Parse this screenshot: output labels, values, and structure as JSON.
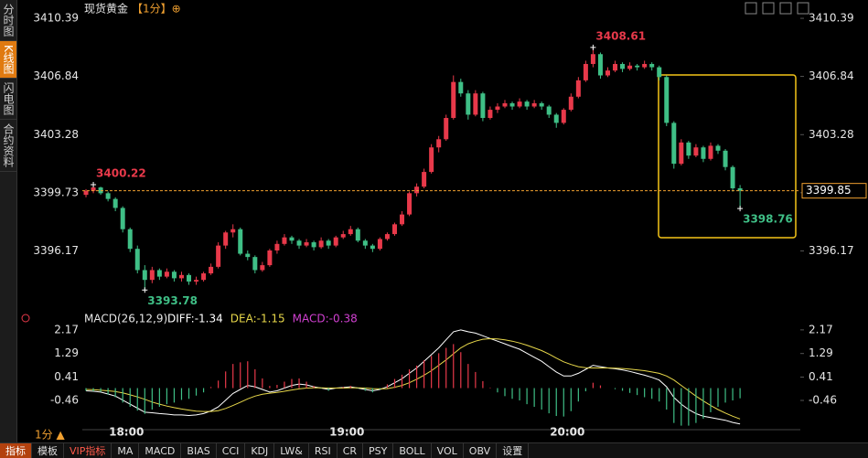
{
  "sidebar": {
    "tabs": [
      "分时图",
      "K线图",
      "闪电图",
      "合约资料"
    ]
  },
  "toolbar": {
    "items": [
      "指标",
      "模板",
      "VIP指标",
      "MA",
      "MACD",
      "BIAS",
      "CCI",
      "KDJ",
      "LW&",
      "RSI",
      "CR",
      "PSY",
      "BOLL",
      "VOL",
      "OBV",
      "设置"
    ]
  },
  "period_label": "1分 ▲",
  "chart_data": [
    {
      "type": "candlestick",
      "title": "现货黄金",
      "subtitle": "【1分】⊕",
      "up_color": "#e8394a",
      "down_color": "#3fbf86",
      "ylim": [
        3392.79,
        3410.84
      ],
      "yticks": [
        3396.17,
        3399.73,
        3403.28,
        3406.84,
        3410.39
      ],
      "xlim": [
        -0.5,
        97.2
      ],
      "last_price": 3399.85,
      "last_color": "#f0a030",
      "extremes": [
        3400.22,
        3393.78,
        3408.61,
        3398.76
      ],
      "ohlc": [
        [
          3399.6,
          3399.95,
          3399.45,
          3399.85
        ],
        [
          3399.85,
          3400.22,
          3399.7,
          3400.05
        ],
        [
          3400.05,
          3400.1,
          3399.6,
          3399.7
        ],
        [
          3399.7,
          3399.8,
          3399.2,
          3399.35
        ],
        [
          3399.35,
          3399.45,
          3398.6,
          3398.8
        ],
        [
          3398.8,
          3398.9,
          3397.3,
          3397.5
        ],
        [
          3397.5,
          3397.6,
          3396.1,
          3396.3
        ],
        [
          3396.3,
          3396.5,
          3394.8,
          3395.0
        ],
        [
          3395.0,
          3395.3,
          3393.78,
          3394.4
        ],
        [
          3394.4,
          3395.2,
          3394.2,
          3395.0
        ],
        [
          3395.0,
          3395.1,
          3394.4,
          3394.6
        ],
        [
          3394.6,
          3395.1,
          3394.5,
          3394.9
        ],
        [
          3394.9,
          3395.0,
          3394.3,
          3394.5
        ],
        [
          3394.5,
          3394.9,
          3394.3,
          3394.7
        ],
        [
          3394.7,
          3394.8,
          3394.1,
          3394.3
        ],
        [
          3394.3,
          3394.6,
          3394.1,
          3394.4
        ],
        [
          3394.4,
          3394.9,
          3394.3,
          3394.8
        ],
        [
          3394.8,
          3395.4,
          3394.7,
          3395.2
        ],
        [
          3395.2,
          3396.7,
          3395.1,
          3396.5
        ],
        [
          3396.5,
          3397.4,
          3396.3,
          3397.3
        ],
        [
          3397.3,
          3397.8,
          3397.0,
          3397.5
        ],
        [
          3397.5,
          3397.6,
          3395.9,
          3396.0
        ],
        [
          3396.0,
          3396.2,
          3395.6,
          3395.8
        ],
        [
          3395.8,
          3395.9,
          3394.8,
          3395.0
        ],
        [
          3395.0,
          3395.5,
          3394.9,
          3395.3
        ],
        [
          3395.3,
          3396.3,
          3395.2,
          3396.2
        ],
        [
          3396.2,
          3396.8,
          3396.0,
          3396.6
        ],
        [
          3396.6,
          3397.2,
          3396.5,
          3397.0
        ],
        [
          3397.0,
          3397.1,
          3396.6,
          3396.8
        ],
        [
          3396.8,
          3396.9,
          3396.3,
          3396.5
        ],
        [
          3396.5,
          3396.9,
          3396.4,
          3396.7
        ],
        [
          3396.7,
          3396.8,
          3396.2,
          3396.4
        ],
        [
          3396.4,
          3397.0,
          3396.3,
          3396.8
        ],
        [
          3396.8,
          3396.9,
          3396.3,
          3396.5
        ],
        [
          3396.5,
          3397.1,
          3396.4,
          3397.0
        ],
        [
          3397.0,
          3397.4,
          3396.9,
          3397.2
        ],
        [
          3397.2,
          3397.7,
          3397.1,
          3397.5
        ],
        [
          3397.5,
          3397.6,
          3396.7,
          3396.8
        ],
        [
          3396.8,
          3396.9,
          3396.3,
          3396.5
        ],
        [
          3396.5,
          3396.6,
          3396.1,
          3396.3
        ],
        [
          3396.3,
          3397.0,
          3396.2,
          3396.9
        ],
        [
          3396.9,
          3397.3,
          3396.8,
          3397.2
        ],
        [
          3397.2,
          3397.9,
          3397.1,
          3397.8
        ],
        [
          3397.8,
          3398.6,
          3397.7,
          3398.4
        ],
        [
          3398.4,
          3399.8,
          3398.3,
          3399.7
        ],
        [
          3399.7,
          3400.3,
          3399.5,
          3400.1
        ],
        [
          3400.1,
          3401.2,
          3400.0,
          3401.0
        ],
        [
          3401.0,
          3402.7,
          3400.9,
          3402.5
        ],
        [
          3402.5,
          3403.2,
          3402.2,
          3403.0
        ],
        [
          3403.0,
          3404.5,
          3402.9,
          3404.3
        ],
        [
          3404.3,
          3406.9,
          3404.2,
          3406.5
        ],
        [
          3406.5,
          3406.7,
          3405.6,
          3405.8
        ],
        [
          3405.8,
          3406.0,
          3404.2,
          3404.5
        ],
        [
          3404.5,
          3406.0,
          3404.4,
          3405.8
        ],
        [
          3405.8,
          3405.9,
          3404.1,
          3404.3
        ],
        [
          3404.3,
          3405.0,
          3404.2,
          3404.8
        ],
        [
          3404.8,
          3405.2,
          3404.6,
          3405.0
        ],
        [
          3405.0,
          3405.4,
          3404.9,
          3405.2
        ],
        [
          3405.2,
          3405.3,
          3404.8,
          3405.0
        ],
        [
          3405.0,
          3405.5,
          3404.9,
          3405.3
        ],
        [
          3405.3,
          3405.4,
          3404.8,
          3405.0
        ],
        [
          3405.0,
          3405.4,
          3404.9,
          3405.2
        ],
        [
          3405.2,
          3405.3,
          3404.8,
          3405.0
        ],
        [
          3405.0,
          3405.1,
          3404.3,
          3404.5
        ],
        [
          3404.5,
          3404.6,
          3403.7,
          3404.0
        ],
        [
          3404.0,
          3404.9,
          3403.9,
          3404.8
        ],
        [
          3404.8,
          3405.8,
          3404.7,
          3405.6
        ],
        [
          3405.6,
          3406.8,
          3405.5,
          3406.6
        ],
        [
          3406.6,
          3407.8,
          3406.5,
          3407.6
        ],
        [
          3407.6,
          3408.61,
          3407.4,
          3408.2
        ],
        [
          3408.2,
          3408.3,
          3406.7,
          3406.9
        ],
        [
          3406.9,
          3407.4,
          3406.8,
          3407.2
        ],
        [
          3407.2,
          3407.8,
          3407.1,
          3407.6
        ],
        [
          3407.6,
          3407.7,
          3407.1,
          3407.3
        ],
        [
          3407.3,
          3407.7,
          3407.2,
          3407.5
        ],
        [
          3407.5,
          3407.6,
          3407.2,
          3407.4
        ],
        [
          3407.4,
          3407.8,
          3407.3,
          3407.6
        ],
        [
          3407.6,
          3407.7,
          3407.2,
          3407.4
        ],
        [
          3407.4,
          3407.5,
          3406.6,
          3406.8
        ],
        [
          3406.8,
          3406.9,
          3403.8,
          3404.0
        ],
        [
          3404.0,
          3404.1,
          3401.2,
          3401.5
        ],
        [
          3401.5,
          3403.0,
          3401.4,
          3402.8
        ],
        [
          3402.8,
          3402.9,
          3401.8,
          3402.0
        ],
        [
          3402.0,
          3402.7,
          3401.9,
          3402.5
        ],
        [
          3402.5,
          3402.6,
          3401.6,
          3401.8
        ],
        [
          3401.8,
          3402.8,
          3401.7,
          3402.6
        ],
        [
          3402.6,
          3402.7,
          3402.1,
          3402.3
        ],
        [
          3402.3,
          3402.4,
          3401.1,
          3401.3
        ],
        [
          3401.3,
          3401.4,
          3399.8,
          3400.0
        ],
        [
          3400.0,
          3400.2,
          3398.76,
          3399.85
        ]
      ]
    },
    {
      "type": "macd",
      "title": "MACD(26,12,9)",
      "legend": [
        "DIFF:-1.34",
        "DEA:-1.15",
        "MACD:-0.38"
      ],
      "ylim": [
        -1.55,
        2.37
      ],
      "yticks": [
        -0.46,
        0.41,
        1.29,
        2.17
      ],
      "xlim": [
        -0.5,
        97.2
      ],
      "xticks": [
        {
          "value": 5.5,
          "label": "18:00"
        },
        {
          "value": 35.5,
          "label": "19:00"
        },
        {
          "value": 65.5,
          "label": "20:00"
        }
      ],
      "series": [
        {
          "color": "#ffffff",
          "values": [
            -0.1,
            -0.12,
            -0.15,
            -0.22,
            -0.3,
            -0.45,
            -0.6,
            -0.75,
            -0.9,
            -0.92,
            -0.95,
            -0.97,
            -1.0,
            -1.0,
            -1.02,
            -1.0,
            -0.95,
            -0.85,
            -0.7,
            -0.45,
            -0.2,
            -0.05,
            0.1,
            0.05,
            -0.05,
            -0.15,
            -0.1,
            0.0,
            0.1,
            0.15,
            0.12,
            0.05,
            0.0,
            -0.05,
            0.0,
            0.02,
            0.05,
            0.0,
            -0.05,
            -0.1,
            -0.05,
            0.05,
            0.2,
            0.35,
            0.55,
            0.75,
            1.0,
            1.25,
            1.5,
            1.8,
            2.1,
            2.17,
            2.1,
            2.05,
            1.95,
            1.85,
            1.75,
            1.65,
            1.55,
            1.45,
            1.3,
            1.15,
            1.0,
            0.8,
            0.6,
            0.45,
            0.45,
            0.55,
            0.7,
            0.85,
            0.8,
            0.75,
            0.72,
            0.68,
            0.62,
            0.55,
            0.48,
            0.4,
            0.3,
            0.05,
            -0.35,
            -0.6,
            -0.8,
            -0.95,
            -1.05,
            -1.1,
            -1.15,
            -1.2,
            -1.28,
            -1.34
          ]
        },
        {
          "color": "#e8d84a",
          "values": [
            -0.05,
            -0.06,
            -0.08,
            -0.1,
            -0.13,
            -0.18,
            -0.25,
            -0.33,
            -0.42,
            -0.52,
            -0.6,
            -0.67,
            -0.73,
            -0.78,
            -0.82,
            -0.86,
            -0.87,
            -0.87,
            -0.84,
            -0.76,
            -0.65,
            -0.53,
            -0.4,
            -0.3,
            -0.23,
            -0.19,
            -0.16,
            -0.12,
            -0.07,
            -0.03,
            0.0,
            0.01,
            0.01,
            0.0,
            0.0,
            0.0,
            0.01,
            0.01,
            0.0,
            -0.02,
            -0.03,
            -0.02,
            0.03,
            0.1,
            0.2,
            0.33,
            0.48,
            0.65,
            0.85,
            1.05,
            1.28,
            1.5,
            1.65,
            1.75,
            1.82,
            1.84,
            1.83,
            1.8,
            1.75,
            1.68,
            1.6,
            1.5,
            1.4,
            1.27,
            1.12,
            0.98,
            0.88,
            0.8,
            0.76,
            0.75,
            0.75,
            0.75,
            0.74,
            0.73,
            0.71,
            0.68,
            0.65,
            0.6,
            0.55,
            0.45,
            0.3,
            0.1,
            -0.1,
            -0.3,
            -0.48,
            -0.65,
            -0.8,
            -0.93,
            -1.05,
            -1.15
          ]
        },
        {
          "type": "bar",
          "color": "#d040d0",
          "up_color": "#e8394a",
          "down_color": "#3fbf86",
          "values": [
            -0.1,
            -0.12,
            -0.14,
            -0.24,
            -0.34,
            -0.54,
            -0.7,
            -0.84,
            -0.96,
            -0.8,
            -0.7,
            -0.6,
            -0.54,
            -0.44,
            -0.4,
            -0.28,
            -0.16,
            0.04,
            0.28,
            0.62,
            0.9,
            0.96,
            1.0,
            0.7,
            0.36,
            0.08,
            0.12,
            0.24,
            0.34,
            0.36,
            0.24,
            0.08,
            -0.02,
            -0.1,
            0.0,
            0.04,
            0.08,
            -0.02,
            -0.1,
            -0.16,
            -0.04,
            0.14,
            0.34,
            0.5,
            0.7,
            0.84,
            1.04,
            1.2,
            1.3,
            1.5,
            1.64,
            1.34,
            0.9,
            0.6,
            0.26,
            0.02,
            -0.16,
            -0.3,
            -0.4,
            -0.46,
            -0.6,
            -0.7,
            -0.8,
            -0.94,
            -1.04,
            -1.06,
            -0.86,
            -0.5,
            -0.12,
            0.2,
            0.1,
            0.0,
            -0.04,
            -0.1,
            -0.18,
            -0.26,
            -0.34,
            -0.4,
            -0.5,
            -0.8,
            -1.3,
            -1.4,
            -1.4,
            -1.3,
            -1.14,
            -0.9,
            -0.7,
            -0.54,
            -0.46,
            -0.38
          ]
        }
      ]
    }
  ]
}
